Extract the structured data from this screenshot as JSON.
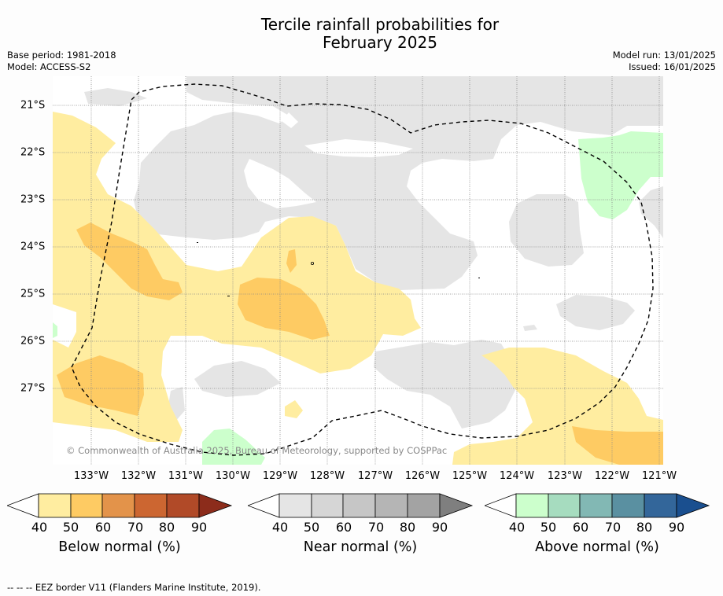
{
  "header": {
    "title_line1": "Tercile rainfall probabilities for",
    "title_line2": "February 2025",
    "base_period": "Base period: 1981-2018",
    "model": "Model: ACCESS-S2",
    "model_run": "Model run: 13/01/2025",
    "issued": "Issued: 16/01/2025"
  },
  "map": {
    "latitudes": [
      "21°S",
      "22°S",
      "23°S",
      "24°S",
      "25°S",
      "26°S",
      "27°S"
    ],
    "longitudes": [
      "133°W",
      "132°W",
      "131°W",
      "130°W",
      "129°W",
      "128°W",
      "127°W",
      "126°W",
      "125°W",
      "124°W",
      "123°W",
      "122°W",
      "121°W"
    ],
    "copyright": "© Commonwealth of Australia 2025, Bureau of Meteorology, supported by COSPPac",
    "colors": {
      "below_40": "#ffeda0",
      "below_50": "#fecb63",
      "near_40": "#e5e5e5",
      "above_40": "#ccffcc",
      "eez_border": "#000000"
    }
  },
  "legends": [
    {
      "title": "Below normal (%)",
      "ticks": [
        "40",
        "50",
        "60",
        "70",
        "80",
        "90"
      ],
      "colors": [
        "#ffeda0",
        "#fecb63",
        "#e3934a",
        "#cc6631",
        "#b14a28",
        "#8c2c1b"
      ]
    },
    {
      "title": "Near normal (%)",
      "ticks": [
        "40",
        "50",
        "60",
        "70",
        "80",
        "90"
      ],
      "colors": [
        "#e5e5e5",
        "#d6d6d6",
        "#c6c6c6",
        "#b5b5b5",
        "#a3a3a3",
        "#7f7f7f"
      ]
    },
    {
      "title": "Above normal (%)",
      "ticks": [
        "40",
        "50",
        "60",
        "70",
        "80",
        "90"
      ],
      "colors": [
        "#ccffcc",
        "#a6dcbf",
        "#82b8b4",
        "#5a90a1",
        "#33669a",
        "#1a4f8f"
      ]
    }
  ],
  "footnote": "--  --  -- EEZ border V11 (Flanders Marine Institute, 2019)."
}
